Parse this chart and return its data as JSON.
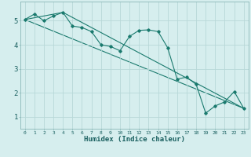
{
  "title": "",
  "xlabel": "Humidex (Indice chaleur)",
  "ylabel": "",
  "background_color": "#d6eeee",
  "grid_color": "#b8d8d8",
  "line_color": "#1a7a6e",
  "spine_color": "#8ab8b8",
  "xlim": [
    -0.5,
    23.5
  ],
  "ylim": [
    0.5,
    5.8
  ],
  "yticks": [
    1,
    2,
    3,
    4,
    5
  ],
  "xticks": [
    0,
    1,
    2,
    3,
    4,
    5,
    6,
    7,
    8,
    9,
    10,
    11,
    12,
    13,
    14,
    15,
    16,
    17,
    18,
    19,
    20,
    21,
    22,
    23
  ],
  "series": [
    [
      0,
      5.05
    ],
    [
      1,
      5.28
    ],
    [
      2,
      5.0
    ],
    [
      3,
      5.2
    ],
    [
      4,
      5.35
    ],
    [
      5,
      4.78
    ],
    [
      6,
      4.72
    ],
    [
      7,
      4.55
    ],
    [
      8,
      4.0
    ],
    [
      9,
      3.93
    ],
    [
      10,
      3.75
    ],
    [
      11,
      4.35
    ],
    [
      12,
      4.6
    ],
    [
      13,
      4.62
    ],
    [
      14,
      4.55
    ],
    [
      15,
      3.88
    ],
    [
      16,
      2.57
    ],
    [
      17,
      2.65
    ],
    [
      18,
      2.35
    ],
    [
      19,
      1.15
    ],
    [
      20,
      1.45
    ],
    [
      21,
      1.62
    ],
    [
      22,
      2.05
    ],
    [
      23,
      1.35
    ]
  ],
  "line2": [
    [
      0,
      5.05
    ],
    [
      4,
      5.35
    ],
    [
      23,
      1.35
    ]
  ],
  "line3": [
    [
      0,
      5.05
    ],
    [
      23,
      1.35
    ]
  ]
}
